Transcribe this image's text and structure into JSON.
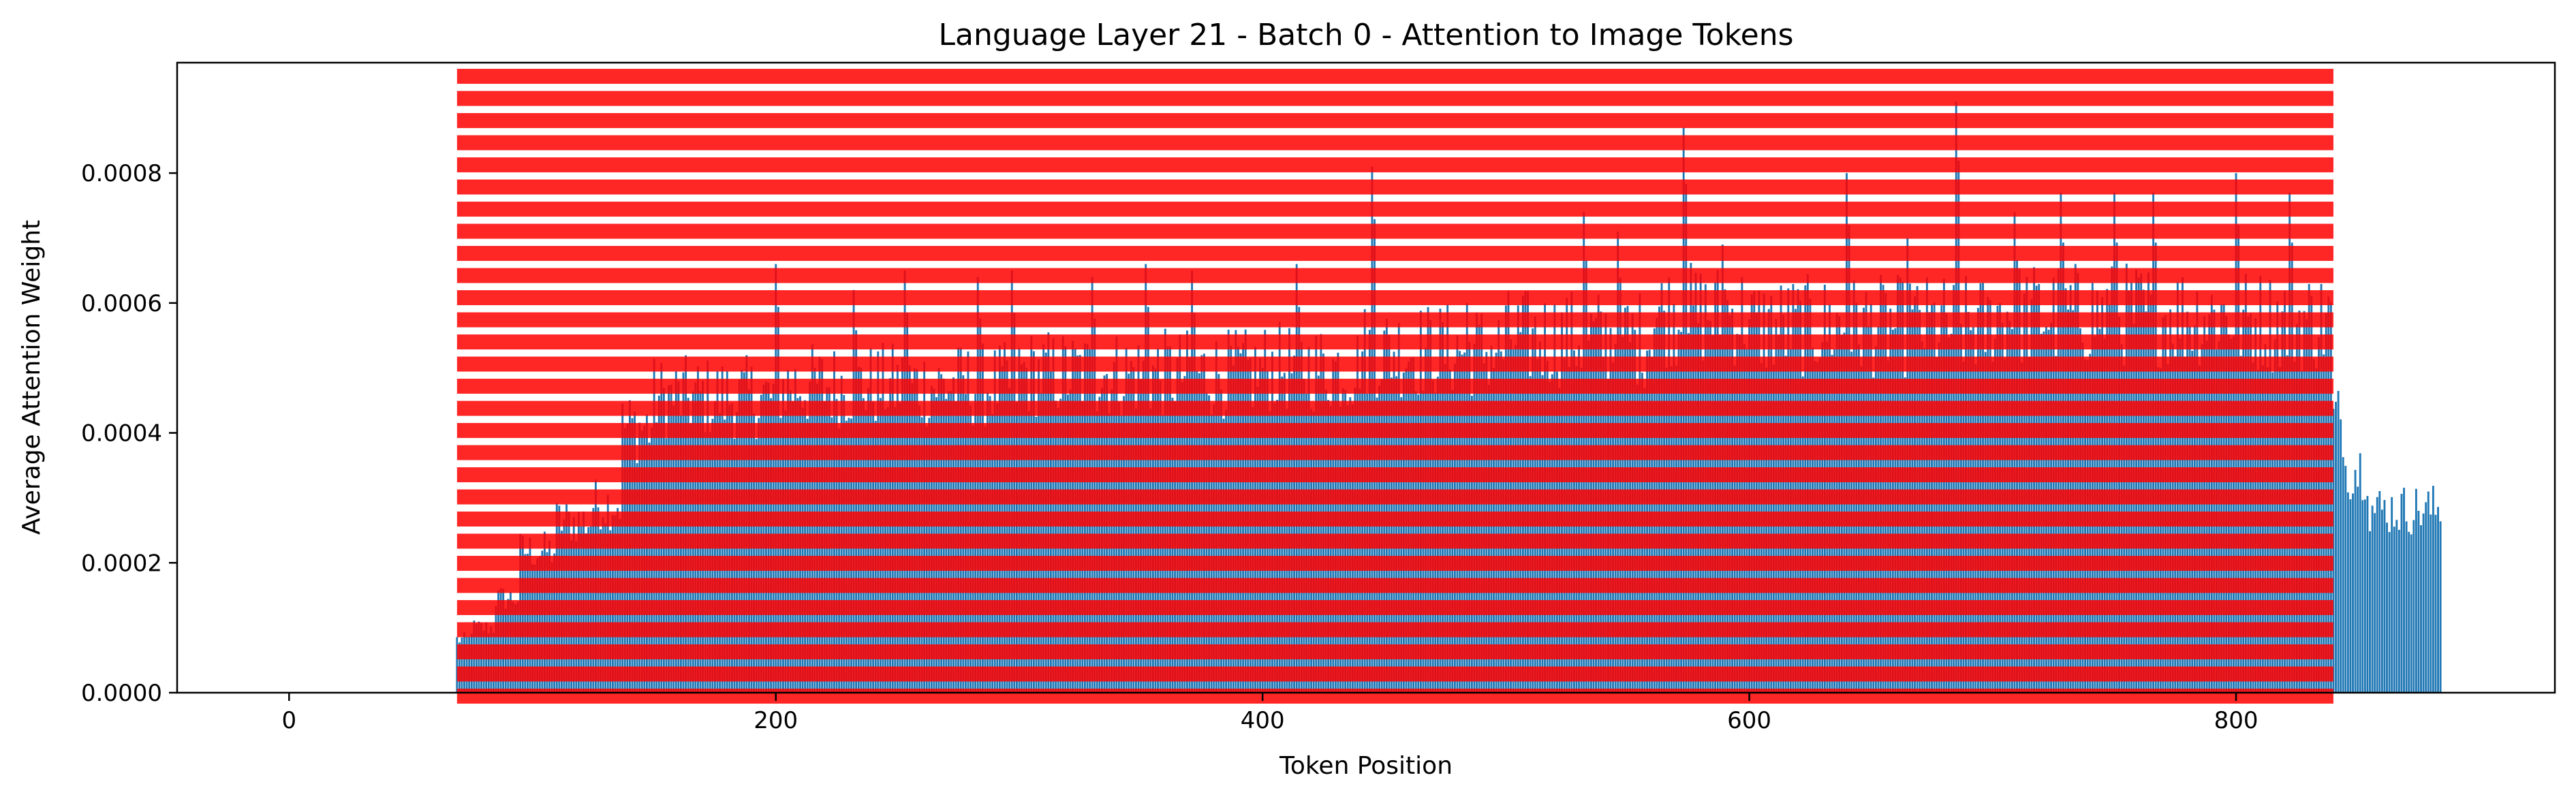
{
  "chart_data": {
    "type": "bar",
    "title": "Language Layer 21 - Batch 0 - Attention to Image Tokens",
    "xlabel": "Token Position",
    "ylabel": "Average Attention Weight",
    "xlim": [
      -46,
      931
    ],
    "ylim": [
      0,
      0.00097
    ],
    "xticks": [
      0,
      200,
      400,
      600,
      800
    ],
    "xtick_labels": [
      "0",
      "200",
      "400",
      "600",
      "800"
    ],
    "yticks": [
      0,
      0.0002,
      0.0004,
      0.0006,
      0.0008
    ],
    "ytick_labels": [
      "0.0000",
      "0.0002",
      "0.0004",
      "0.0006",
      "0.0008"
    ],
    "grid": false,
    "bar_color": "#1f77b4",
    "highlight": {
      "description": "red dashed horizontal band over image-token range",
      "color": "#ff0000",
      "x_range": [
        69,
        840
      ],
      "y_range": [
        0,
        0.00096
      ]
    },
    "series": [
      {
        "values": [
          [
            0,
            69,
            0.0
          ],
          [
            69,
            75,
            9e-05
          ],
          [
            75,
            85,
            0.00011
          ],
          [
            85,
            95,
            0.00016
          ],
          [
            95,
            110,
            0.00024
          ],
          [
            110,
            125,
            0.00029
          ],
          [
            125,
            137,
            0.00032
          ],
          [
            137,
            150,
            0.00045
          ],
          [
            150,
            200,
            0.0005
          ],
          [
            200,
            300,
            0.00052
          ],
          [
            300,
            400,
            0.00054
          ],
          [
            400,
            440,
            0.00055
          ],
          [
            440,
            500,
            0.00058
          ],
          [
            500,
            560,
            0.0006
          ],
          [
            560,
            600,
            0.00064
          ],
          [
            600,
            700,
            0.00062
          ],
          [
            700,
            800,
            0.00064
          ],
          [
            800,
            840,
            0.00063
          ],
          [
            840,
            845,
            0.00046
          ],
          [
            845,
            855,
            0.00038
          ],
          [
            855,
            885,
            0.00031
          ]
        ],
        "peaks": [
          [
            200,
            0.00066
          ],
          [
            232,
            0.00062
          ],
          [
            253,
            0.00065
          ],
          [
            283,
            0.00064
          ],
          [
            297,
            0.00065
          ],
          [
            330,
            0.00064
          ],
          [
            352,
            0.00066
          ],
          [
            371,
            0.00065
          ],
          [
            414,
            0.00066
          ],
          [
            445,
            0.00081
          ],
          [
            484,
            0.0006
          ],
          [
            532,
            0.00074
          ],
          [
            546,
            0.00071
          ],
          [
            573,
            0.00087
          ],
          [
            589,
            0.00069
          ],
          [
            640,
            0.0008
          ],
          [
            665,
            0.0007
          ],
          [
            685,
            0.00091
          ],
          [
            709,
            0.00074
          ],
          [
            728,
            0.00077
          ],
          [
            750,
            0.00077
          ],
          [
            766,
            0.00077
          ],
          [
            800,
            0.0008
          ],
          [
            822,
            0.00077
          ]
        ]
      }
    ]
  }
}
